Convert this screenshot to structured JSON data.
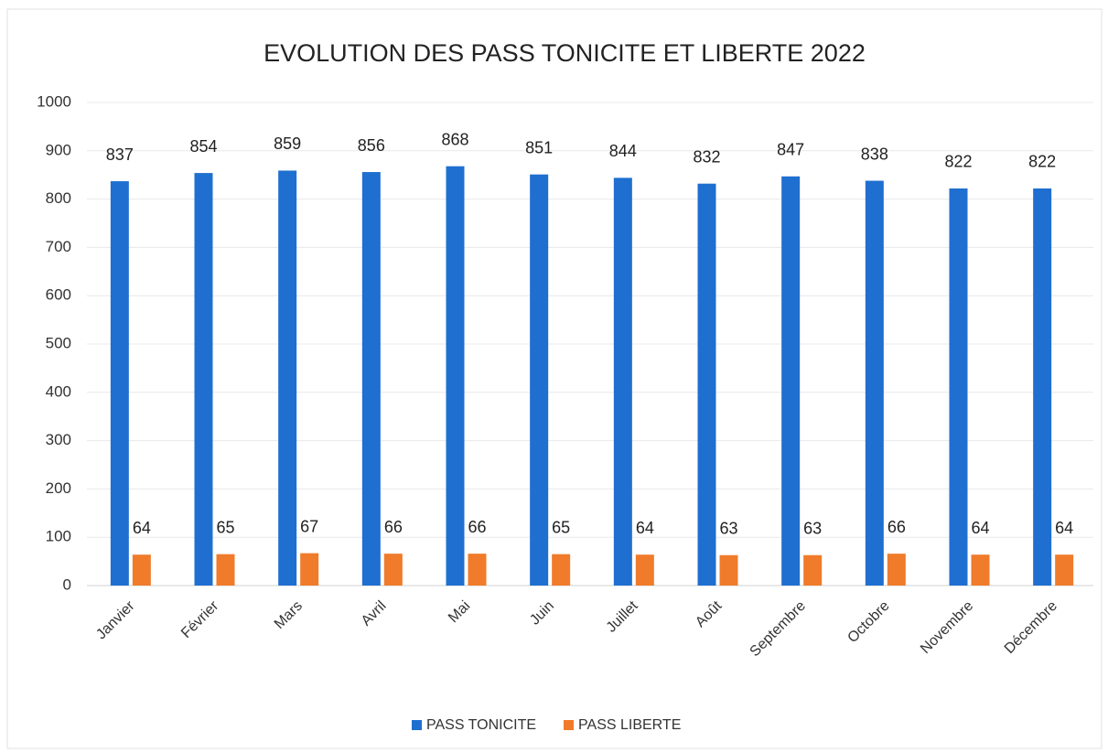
{
  "chart_data": {
    "type": "bar",
    "title": "EVOLUTION DES PASS TONICITE ET LIBERTE 2022",
    "categories": [
      "Janvier",
      "Février",
      "Mars",
      "Avril",
      "Mai",
      "Juin",
      "Juillet",
      "Août",
      "Septembre",
      "Octobre",
      "Novembre",
      "Décembre"
    ],
    "series": [
      {
        "name": "PASS TONICITE",
        "color": "#1f6fd0",
        "values": [
          837,
          854,
          859,
          856,
          868,
          851,
          844,
          832,
          847,
          838,
          822,
          822
        ]
      },
      {
        "name": "PASS LIBERTE",
        "color": "#f07b2a",
        "values": [
          64,
          65,
          67,
          66,
          66,
          65,
          64,
          63,
          63,
          66,
          64,
          64
        ]
      }
    ],
    "ylim": [
      0,
      1000
    ],
    "yticks": [
      0,
      100,
      200,
      300,
      400,
      500,
      600,
      700,
      800,
      900,
      1000
    ],
    "grid": true,
    "legend": "bottom"
  }
}
